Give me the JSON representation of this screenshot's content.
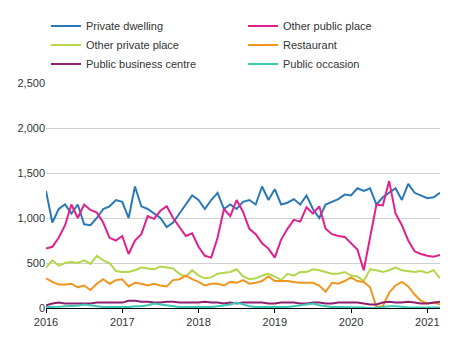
{
  "chart_data": {
    "type": "line",
    "categories": [
      "2016",
      null,
      null,
      null,
      null,
      null,
      null,
      null,
      null,
      null,
      null,
      null,
      "2017",
      null,
      null,
      null,
      null,
      null,
      null,
      null,
      null,
      null,
      null,
      null,
      "2018",
      null,
      null,
      null,
      null,
      null,
      null,
      null,
      null,
      null,
      null,
      null,
      "2019",
      null,
      null,
      null,
      null,
      null,
      null,
      null,
      null,
      null,
      null,
      null,
      "2020",
      null,
      null,
      null,
      null,
      null,
      null,
      null,
      null,
      null,
      null,
      null,
      "2021",
      null,
      null
    ],
    "series": [
      {
        "name": "Private dwelling",
        "color": "#2a78b8",
        "values": [
          1300,
          950,
          1100,
          1150,
          1050,
          1150,
          930,
          920,
          1000,
          1100,
          1130,
          1200,
          1180,
          1000,
          1350,
          1130,
          1100,
          1050,
          1000,
          900,
          950,
          1050,
          1150,
          1250,
          1200,
          1100,
          1200,
          1280,
          1100,
          1150,
          1100,
          1180,
          1200,
          1150,
          1350,
          1200,
          1320,
          1150,
          1170,
          1210,
          1150,
          1250,
          1100,
          1000,
          1150,
          1180,
          1210,
          1260,
          1250,
          1330,
          1300,
          1330,
          1150,
          1230,
          1280,
          1330,
          1200,
          1380,
          1280,
          1250,
          1220,
          1230,
          1280
        ]
      },
      {
        "name": "Other public place",
        "color": "#e0208c",
        "values": [
          660,
          680,
          780,
          920,
          1150,
          1000,
          1150,
          1090,
          1060,
          950,
          780,
          750,
          800,
          600,
          750,
          820,
          1020,
          990,
          1080,
          1130,
          1000,
          900,
          800,
          830,
          680,
          580,
          560,
          780,
          1100,
          1020,
          1200,
          1070,
          880,
          820,
          720,
          660,
          560,
          760,
          880,
          980,
          960,
          1120,
          1050,
          1130,
          880,
          820,
          800,
          790,
          720,
          650,
          420,
          770,
          1150,
          1140,
          1410,
          1050,
          920,
          750,
          630,
          600,
          580,
          570,
          590
        ]
      },
      {
        "name": "Other private place",
        "color": "#b4d64a",
        "values": [
          450,
          530,
          470,
          500,
          510,
          500,
          530,
          490,
          580,
          530,
          500,
          410,
          400,
          400,
          420,
          450,
          440,
          430,
          460,
          450,
          440,
          380,
          350,
          420,
          360,
          330,
          340,
          380,
          390,
          400,
          430,
          350,
          320,
          330,
          360,
          380,
          350,
          310,
          380,
          360,
          400,
          400,
          430,
          420,
          400,
          380,
          380,
          400,
          360,
          350,
          300,
          430,
          420,
          400,
          420,
          450,
          420,
          410,
          400,
          410,
          390,
          420,
          330
        ]
      },
      {
        "name": "Restaurant",
        "color": "#f0961e",
        "values": [
          330,
          290,
          260,
          260,
          270,
          230,
          250,
          200,
          270,
          320,
          270,
          310,
          320,
          240,
          280,
          270,
          250,
          270,
          250,
          240,
          310,
          320,
          360,
          320,
          290,
          250,
          270,
          270,
          250,
          290,
          280,
          310,
          270,
          280,
          300,
          350,
          300,
          300,
          300,
          290,
          280,
          280,
          280,
          250,
          180,
          280,
          270,
          300,
          340,
          300,
          290,
          230,
          10,
          20,
          170,
          250,
          290,
          240,
          150,
          80,
          50,
          60,
          40
        ]
      },
      {
        "name": "Public business centre",
        "color": "#8c1f6e",
        "values": [
          30,
          50,
          60,
          50,
          50,
          50,
          50,
          50,
          60,
          60,
          60,
          60,
          60,
          80,
          80,
          70,
          70,
          60,
          60,
          70,
          70,
          60,
          60,
          60,
          60,
          70,
          60,
          60,
          50,
          60,
          50,
          60,
          60,
          60,
          60,
          50,
          50,
          60,
          60,
          60,
          50,
          50,
          60,
          60,
          50,
          50,
          60,
          60,
          60,
          60,
          50,
          40,
          40,
          60,
          70,
          60,
          60,
          70,
          60,
          50,
          50,
          60,
          70
        ]
      },
      {
        "name": "Public occasion",
        "color": "#3cc8b4",
        "values": [
          10,
          10,
          15,
          20,
          20,
          25,
          40,
          30,
          20,
          10,
          10,
          10,
          10,
          10,
          20,
          20,
          30,
          50,
          40,
          30,
          20,
          10,
          10,
          10,
          10,
          10,
          10,
          20,
          30,
          40,
          60,
          40,
          20,
          10,
          10,
          10,
          10,
          10,
          10,
          20,
          30,
          40,
          50,
          30,
          20,
          10,
          10,
          10,
          10,
          10,
          5,
          0,
          0,
          10,
          20,
          20,
          10,
          5,
          5,
          5,
          5,
          5,
          5
        ]
      }
    ],
    "ylim": [
      0,
      2500
    ],
    "yticks": [
      0,
      500,
      {
        "value": 1000,
        "label": "1,000"
      },
      {
        "value": 1500,
        "label": "1,500"
      },
      {
        "value": 2000,
        "label": "2,000"
      },
      {
        "value": 2500,
        "label": "2,500"
      }
    ],
    "grid": true,
    "legend": "top"
  }
}
